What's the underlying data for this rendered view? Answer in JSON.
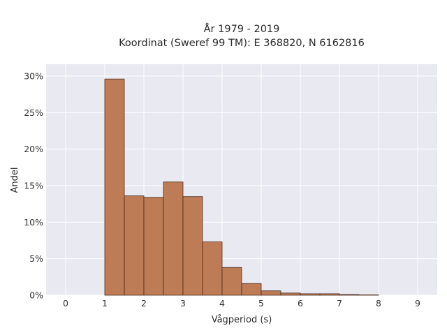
{
  "chart_data": {
    "type": "bar",
    "title_line1": "År 1979 - 2019",
    "title_line2": "Koordinat (Sweref 99 TM): E 368820, N 6162816",
    "xlabel": "Vågperiod (s)",
    "ylabel": "Andel",
    "xlim": [
      -0.5,
      9.5
    ],
    "ylim": [
      0,
      0.3
    ],
    "x_ticks": [
      0,
      1,
      2,
      3,
      4,
      5,
      6,
      7,
      8,
      9
    ],
    "x_tick_labels": [
      "0",
      "1",
      "2",
      "3",
      "4",
      "5",
      "6",
      "7",
      "8",
      "9"
    ],
    "y_ticks": [
      0,
      0.05,
      0.1,
      0.15,
      0.2,
      0.25,
      0.3
    ],
    "y_tick_labels": [
      "0%",
      "5%",
      "10%",
      "15%",
      "20%",
      "25%",
      "30%"
    ],
    "bin_width": 0.5,
    "bins": [
      {
        "x0": 1.0,
        "value": 0.296
      },
      {
        "x0": 1.5,
        "value": 0.136
      },
      {
        "x0": 2.0,
        "value": 0.134
      },
      {
        "x0": 2.5,
        "value": 0.155
      },
      {
        "x0": 3.0,
        "value": 0.135
      },
      {
        "x0": 3.5,
        "value": 0.073
      },
      {
        "x0": 4.0,
        "value": 0.038
      },
      {
        "x0": 4.5,
        "value": 0.016
      },
      {
        "x0": 5.0,
        "value": 0.006
      },
      {
        "x0": 5.5,
        "value": 0.003
      },
      {
        "x0": 6.0,
        "value": 0.002
      },
      {
        "x0": 6.5,
        "value": 0.002
      },
      {
        "x0": 7.0,
        "value": 0.001
      },
      {
        "x0": 7.5,
        "value": 0.0005
      }
    ],
    "grid": true,
    "colors": {
      "bar_fill": "#bd7b56",
      "bar_edge": "#4a2c1a",
      "plot_bg": "#e9e9f2",
      "grid": "#ffffff"
    }
  }
}
